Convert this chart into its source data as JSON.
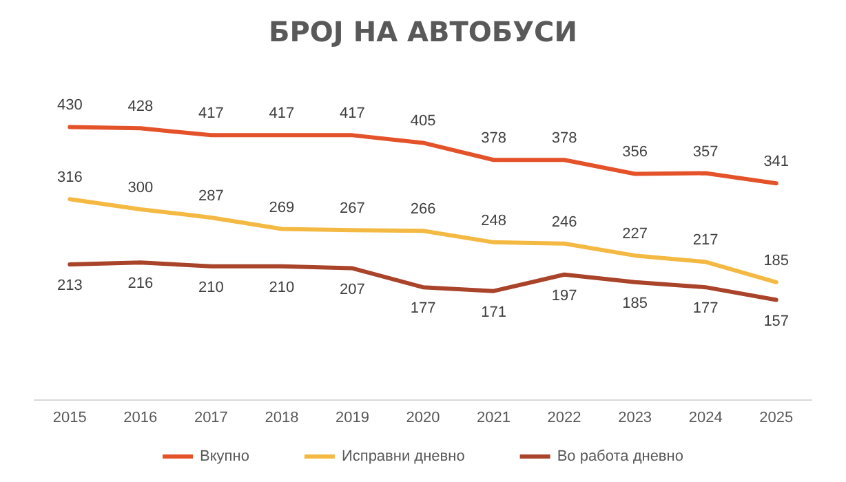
{
  "chart_data": {
    "type": "line",
    "title": "БРОЈ НА АВТОБУСИ",
    "categories": [
      "2015",
      "2016",
      "2017",
      "2018",
      "2019",
      "2020",
      "2021",
      "2022",
      "2023",
      "2024",
      "2025"
    ],
    "series": [
      {
        "name": "Вкупно",
        "color": "#e4522a",
        "values": [
          430,
          428,
          417,
          417,
          417,
          405,
          378,
          378,
          356,
          357,
          341
        ]
      },
      {
        "name": "Исправни дневно",
        "color": "#f4b942",
        "values": [
          316,
          300,
          287,
          269,
          267,
          266,
          248,
          246,
          227,
          217,
          185
        ]
      },
      {
        "name": "Во работа дневно",
        "color": "#a9432a",
        "values": [
          213,
          216,
          210,
          210,
          207,
          177,
          171,
          197,
          185,
          177,
          157
        ]
      }
    ],
    "data_labels": true,
    "legend": "bottom",
    "marker": "none",
    "line_style": "solid"
  }
}
